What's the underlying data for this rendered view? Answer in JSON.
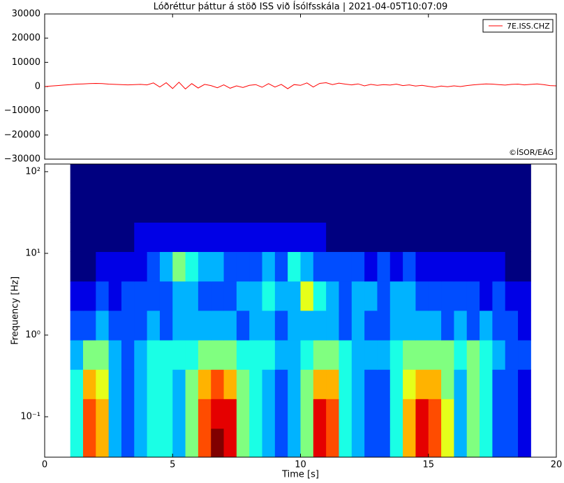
{
  "chart_data": [
    {
      "type": "line",
      "title": "Lóðréttur þáttur á stöð ISS við Ísólfsskála  |  2021-04-05T10:07:09",
      "annotation": "©ÍSOR/EÁG",
      "legend": "upper right",
      "xlim": [
        0,
        20
      ],
      "ylim": [
        -30000,
        30000
      ],
      "yticks": [
        {
          "value": -30000,
          "label": "−30000"
        },
        {
          "value": -20000,
          "label": "−20000"
        },
        {
          "value": -10000,
          "label": "−10000"
        },
        0,
        10000,
        20000,
        30000
      ],
      "x": [
        0,
        0.25,
        0.5,
        0.75,
        1,
        1.25,
        1.5,
        1.75,
        2,
        2.25,
        2.5,
        2.75,
        3,
        3.25,
        3.5,
        3.75,
        4,
        4.25,
        4.5,
        4.75,
        5,
        5.25,
        5.5,
        5.75,
        6,
        6.25,
        6.5,
        6.75,
        7,
        7.25,
        7.5,
        7.75,
        8,
        8.25,
        8.5,
        8.75,
        9,
        9.25,
        9.5,
        9.75,
        10,
        10.25,
        10.5,
        10.75,
        11,
        11.25,
        11.5,
        11.75,
        12,
        12.25,
        12.5,
        12.75,
        13,
        13.25,
        13.5,
        13.75,
        14,
        14.25,
        14.5,
        14.75,
        15,
        15.25,
        15.5,
        15.75,
        16,
        16.25,
        16.5,
        16.75,
        17,
        17.25,
        17.5,
        17.75,
        18,
        18.25,
        18.5,
        18.75,
        19,
        19.25,
        19.5,
        19.75,
        20
      ],
      "series": [
        {
          "name": "7E.ISS.CHZ",
          "color": "#ff0000",
          "values": [
            0,
            200,
            400,
            600,
            800,
            1000,
            1100,
            1200,
            1300,
            1200,
            1000,
            900,
            800,
            700,
            800,
            900,
            700,
            1500,
            -200,
            1600,
            -800,
            1800,
            -1000,
            1200,
            -600,
            900,
            400,
            -500,
            700,
            -700,
            300,
            -400,
            500,
            800,
            -300,
            1200,
            -200,
            900,
            -900,
            800,
            500,
            1500,
            -200,
            1300,
            1600,
            800,
            1400,
            1000,
            700,
            1100,
            300,
            900,
            500,
            800,
            600,
            1000,
            400,
            700,
            200,
            500,
            100,
            -300,
            200,
            -100,
            300,
            0,
            400,
            700,
            900,
            1100,
            1000,
            800,
            600,
            900,
            1000,
            700,
            900,
            1100,
            800,
            400,
            300
          ]
        }
      ]
    },
    {
      "type": "heatmap",
      "xlabel": "Time [s]",
      "ylabel": "Frequency [Hz]",
      "log_y": true,
      "xlim": [
        0,
        20
      ],
      "ylim": [
        0.032,
        124
      ],
      "clim": [
        0,
        10
      ],
      "colormap": "jet",
      "xticks": [
        0,
        5,
        10,
        15,
        20
      ],
      "yticks": [
        {
          "value": 0.1,
          "label": "10⁻¹"
        },
        {
          "value": 1,
          "label": "10⁰"
        },
        {
          "value": 10,
          "label": "10¹"
        },
        {
          "value": 100,
          "label": "10²"
        }
      ],
      "time_bins": [
        1,
        1.5,
        2,
        2.5,
        3,
        3.5,
        4,
        4.5,
        5,
        5.5,
        6,
        6.5,
        7,
        7.5,
        8,
        8.5,
        9,
        9.5,
        10,
        10.5,
        11,
        11.5,
        12,
        12.5,
        13,
        13.5,
        14,
        14.5,
        15,
        15.5,
        16,
        16.5,
        17,
        17.5,
        18,
        18.5,
        19
      ],
      "freq_bins": [
        0.032,
        0.072,
        0.166,
        0.38,
        0.87,
        2,
        4.57,
        10.5,
        24,
        55,
        124
      ],
      "z": [
        [
          4,
          8,
          7,
          3,
          2,
          3,
          4,
          4,
          3,
          5,
          8,
          10,
          9,
          5,
          4,
          3,
          2,
          3,
          5,
          9,
          8,
          4,
          3,
          2,
          2,
          4,
          7,
          9,
          8,
          6,
          3,
          5,
          4,
          2,
          2,
          1
        ],
        [
          4,
          8,
          7,
          3,
          2,
          3,
          4,
          4,
          3,
          5,
          8,
          9,
          9,
          5,
          4,
          3,
          2,
          3,
          5,
          9,
          8,
          4,
          3,
          2,
          2,
          4,
          7,
          9,
          8,
          6,
          3,
          5,
          4,
          2,
          2,
          1
        ],
        [
          4,
          7,
          6,
          3,
          2,
          3,
          4,
          4,
          3,
          5,
          7,
          8,
          7,
          5,
          4,
          3,
          2,
          3,
          5,
          7,
          7,
          4,
          3,
          2,
          2,
          4,
          6,
          7,
          7,
          5,
          3,
          5,
          4,
          2,
          2,
          1
        ],
        [
          3,
          5,
          5,
          3,
          2,
          3,
          4,
          4,
          4,
          4,
          5,
          5,
          5,
          4,
          4,
          4,
          3,
          3,
          4,
          5,
          5,
          4,
          3,
          3,
          3,
          4,
          5,
          5,
          5,
          5,
          4,
          5,
          4,
          3,
          2,
          2
        ],
        [
          2,
          2,
          3,
          2,
          2,
          2,
          3,
          2,
          3,
          3,
          3,
          3,
          3,
          2,
          3,
          3,
          2,
          3,
          3,
          3,
          3,
          2,
          3,
          2,
          2,
          3,
          3,
          3,
          3,
          2,
          3,
          2,
          3,
          2,
          2,
          1
        ],
        [
          1,
          1,
          2,
          1,
          2,
          2,
          2,
          2,
          3,
          3,
          2,
          2,
          2,
          3,
          3,
          4,
          3,
          3,
          6,
          4,
          3,
          2,
          3,
          3,
          2,
          3,
          3,
          2,
          2,
          2,
          2,
          2,
          1,
          2,
          1,
          1
        ],
        [
          0,
          0,
          1,
          1,
          1,
          1,
          2,
          3,
          5,
          4,
          3,
          3,
          2,
          2,
          2,
          3,
          2,
          4,
          3,
          2,
          2,
          2,
          2,
          1,
          2,
          1,
          2,
          1,
          1,
          1,
          1,
          1,
          1,
          1,
          0,
          0
        ],
        [
          0,
          0,
          0,
          0,
          0,
          1,
          1,
          1,
          1,
          1,
          1,
          1,
          1,
          1,
          1,
          1,
          1,
          1,
          1,
          1,
          0,
          0,
          0,
          0,
          0,
          0,
          0,
          0,
          0,
          0,
          0,
          0,
          0,
          0,
          0,
          0
        ],
        [
          0,
          0,
          0,
          0,
          0,
          0,
          0,
          0,
          0,
          0,
          0,
          0,
          0,
          0,
          0,
          0,
          0,
          0,
          0,
          0,
          0,
          0,
          0,
          0,
          0,
          0,
          0,
          0,
          0,
          0,
          0,
          0,
          0,
          0,
          0,
          0
        ],
        [
          0,
          0,
          0,
          0,
          0,
          0,
          0,
          0,
          0,
          0,
          0,
          0,
          0,
          0,
          0,
          0,
          0,
          0,
          0,
          0,
          0,
          0,
          0,
          0,
          0,
          0,
          0,
          0,
          0,
          0,
          0,
          0,
          0,
          0,
          0,
          0
        ]
      ]
    }
  ]
}
